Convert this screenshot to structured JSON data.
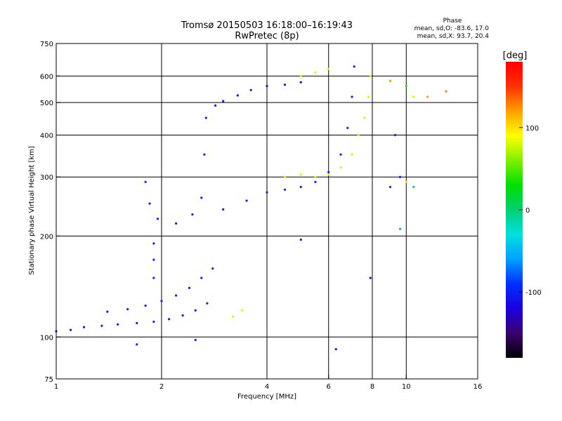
{
  "chart_data": {
    "type": "scatter",
    "title": "Tromsø 20150503 16:18:00–16:19:43",
    "subtitle": "RwPretec (8p)",
    "xlabel": "Frequency [MHz]",
    "ylabel": "Stationary phase Virtual Height [km]",
    "x_scale": "log",
    "y_scale": "log",
    "xlim": [
      1,
      16
    ],
    "ylim": [
      75,
      750
    ],
    "x_ticks": [
      1,
      2,
      4,
      6,
      8,
      10,
      16
    ],
    "x_tick_labels": [
      "1",
      "2",
      "4",
      "6",
      "8",
      "10",
      "16"
    ],
    "y_ticks": [
      75,
      100,
      200,
      300,
      400,
      500,
      600,
      750
    ],
    "y_tick_labels": [
      "75",
      "100",
      "200",
      "300",
      "400",
      "500",
      "600",
      "750"
    ],
    "grid": true,
    "phase_stats": {
      "heading": "Phase",
      "line_o": "mean, sd,O: -83.6, 17.0",
      "line_x": "mean, sd,X:  93.7, 20.4"
    },
    "colorbar": {
      "label": "[deg]",
      "range": [
        -180,
        180
      ],
      "ticks": [
        -100,
        0,
        100
      ],
      "tick_labels": [
        "-100",
        "0",
        "100"
      ],
      "colors": [
        "#000000",
        "#3a0070",
        "#1a00e0",
        "#0030ff",
        "#00a0ff",
        "#00e0e0",
        "#00d070",
        "#00e000",
        "#80f000",
        "#ffff00",
        "#ffa000",
        "#ff3000",
        "#ff0000"
      ]
    },
    "series": [
      {
        "description": "E-region traces (1–3 MHz, 100–180 km), phase ≈ -100°",
        "trace": [
          {
            "x": 1.0,
            "y": 104,
            "phase": -100
          },
          {
            "x": 1.1,
            "y": 105,
            "phase": -100
          },
          {
            "x": 1.2,
            "y": 107,
            "phase": -100
          },
          {
            "x": 1.35,
            "y": 108,
            "phase": -100
          },
          {
            "x": 1.5,
            "y": 109,
            "phase": -100
          },
          {
            "x": 1.7,
            "y": 110,
            "phase": -100
          },
          {
            "x": 1.9,
            "y": 111,
            "phase": -100
          },
          {
            "x": 2.1,
            "y": 113,
            "phase": -100
          },
          {
            "x": 2.3,
            "y": 116,
            "phase": -100
          },
          {
            "x": 2.5,
            "y": 120,
            "phase": -100
          },
          {
            "x": 2.7,
            "y": 126,
            "phase": -100
          },
          {
            "x": 1.4,
            "y": 119,
            "phase": -100
          },
          {
            "x": 1.6,
            "y": 121,
            "phase": -100
          },
          {
            "x": 1.8,
            "y": 124,
            "phase": -100
          },
          {
            "x": 2.0,
            "y": 128,
            "phase": -100
          },
          {
            "x": 2.2,
            "y": 133,
            "phase": -100
          },
          {
            "x": 2.4,
            "y": 140,
            "phase": -100
          },
          {
            "x": 2.6,
            "y": 150,
            "phase": -100
          },
          {
            "x": 2.8,
            "y": 160,
            "phase": -100
          },
          {
            "x": 1.9,
            "y": 150,
            "phase": -100
          },
          {
            "x": 1.9,
            "y": 170,
            "phase": -100
          },
          {
            "x": 1.9,
            "y": 190,
            "phase": -100
          }
        ]
      },
      {
        "description": "F-region O-mode trace (blue)",
        "trace": [
          {
            "x": 1.8,
            "y": 290,
            "phase": -100
          },
          {
            "x": 1.85,
            "y": 250,
            "phase": -100
          },
          {
            "x": 1.95,
            "y": 225,
            "phase": -100
          },
          {
            "x": 2.2,
            "y": 218,
            "phase": -100
          },
          {
            "x": 2.45,
            "y": 232,
            "phase": -100
          },
          {
            "x": 2.6,
            "y": 260,
            "phase": -100
          },
          {
            "x": 2.65,
            "y": 350,
            "phase": -100
          },
          {
            "x": 2.68,
            "y": 450,
            "phase": -100
          },
          {
            "x": 3.0,
            "y": 240,
            "phase": -100
          },
          {
            "x": 3.5,
            "y": 255,
            "phase": -100
          },
          {
            "x": 4.0,
            "y": 270,
            "phase": -100
          },
          {
            "x": 4.5,
            "y": 275,
            "phase": -100
          },
          {
            "x": 5.0,
            "y": 280,
            "phase": -100
          },
          {
            "x": 5.5,
            "y": 290,
            "phase": -100
          },
          {
            "x": 6.0,
            "y": 310,
            "phase": -100
          },
          {
            "x": 6.5,
            "y": 350,
            "phase": -100
          },
          {
            "x": 6.8,
            "y": 420,
            "phase": -100
          },
          {
            "x": 7.0,
            "y": 520,
            "phase": -100
          },
          {
            "x": 7.1,
            "y": 640,
            "phase": -100
          }
        ]
      },
      {
        "description": "F-region O-mode upper branch (dark blue)",
        "trace": [
          {
            "x": 2.85,
            "y": 490,
            "phase": -110
          },
          {
            "x": 3.0,
            "y": 505,
            "phase": -110
          },
          {
            "x": 3.3,
            "y": 525,
            "phase": -110
          },
          {
            "x": 3.6,
            "y": 545,
            "phase": -110
          },
          {
            "x": 4.0,
            "y": 560,
            "phase": -110
          },
          {
            "x": 4.5,
            "y": 565,
            "phase": -110
          },
          {
            "x": 5.0,
            "y": 575,
            "phase": -110
          }
        ]
      },
      {
        "description": "F-region X-mode trace (yellow/orange)",
        "trace": [
          {
            "x": 4.5,
            "y": 300,
            "phase": 100
          },
          {
            "x": 5.0,
            "y": 305,
            "phase": 100
          },
          {
            "x": 5.5,
            "y": 300,
            "phase": 100
          },
          {
            "x": 6.0,
            "y": 305,
            "phase": 100
          },
          {
            "x": 6.5,
            "y": 320,
            "phase": 100
          },
          {
            "x": 7.0,
            "y": 350,
            "phase": 100
          },
          {
            "x": 7.3,
            "y": 400,
            "phase": 100
          },
          {
            "x": 7.6,
            "y": 450,
            "phase": 100
          },
          {
            "x": 7.8,
            "y": 520,
            "phase": 100
          },
          {
            "x": 7.9,
            "y": 600,
            "phase": 100
          },
          {
            "x": 5.0,
            "y": 600,
            "phase": 100
          },
          {
            "x": 5.5,
            "y": 615,
            "phase": 100
          },
          {
            "x": 6.0,
            "y": 630,
            "phase": 100
          },
          {
            "x": 3.2,
            "y": 115,
            "phase": 100
          },
          {
            "x": 3.4,
            "y": 120,
            "phase": 100
          }
        ]
      },
      {
        "description": "Scattered points",
        "trace": [
          {
            "x": 9.0,
            "y": 580,
            "phase": 120
          },
          {
            "x": 10.0,
            "y": 560,
            "phase": 40
          },
          {
            "x": 10.5,
            "y": 520,
            "phase": 100
          },
          {
            "x": 11.5,
            "y": 520,
            "phase": 120
          },
          {
            "x": 13.0,
            "y": 540,
            "phase": 130
          },
          {
            "x": 9.3,
            "y": 400,
            "phase": -100
          },
          {
            "x": 9.6,
            "y": 300,
            "phase": -100
          },
          {
            "x": 9.0,
            "y": 280,
            "phase": -90
          },
          {
            "x": 9.6,
            "y": 210,
            "phase": -60
          },
          {
            "x": 5.0,
            "y": 195,
            "phase": -100
          },
          {
            "x": 6.3,
            "y": 92,
            "phase": -100
          },
          {
            "x": 7.9,
            "y": 150,
            "phase": -110
          },
          {
            "x": 2.5,
            "y": 98,
            "phase": -100
          },
          {
            "x": 10.5,
            "y": 280,
            "phase": 0
          },
          {
            "x": 10.0,
            "y": 290,
            "phase": 100
          },
          {
            "x": 1.7,
            "y": 95,
            "phase": -100
          }
        ]
      }
    ]
  }
}
